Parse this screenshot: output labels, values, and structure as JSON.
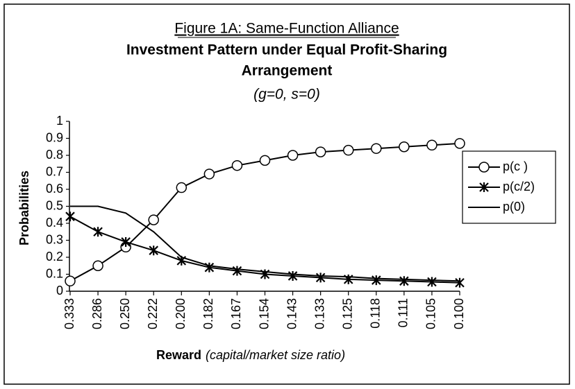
{
  "chart_data": {
    "type": "line",
    "title": "Figure 1A: Same-Function Alliance",
    "subtitle": "Investment Pattern under Equal  Profit-Sharing",
    "subtitle_line2": "Arrangement",
    "parameters": "(g=0, s=0)",
    "x_label": "Reward",
    "x_label_note": "(capital/market size ratio)",
    "y_label": "Probabilities",
    "categories": [
      "0.333",
      "0.286",
      "0.250",
      "0.222",
      "0.200",
      "0.182",
      "0.167",
      "0.154",
      "0.143",
      "0.133",
      "0.125",
      "0.118",
      "0.111",
      "0.105",
      "0.100"
    ],
    "series": [
      {
        "name": "p(c )",
        "color": "#000000",
        "marker": "circle",
        "values": [
          0.06,
          0.15,
          0.26,
          0.42,
          0.61,
          0.69,
          0.74,
          0.77,
          0.8,
          0.82,
          0.83,
          0.84,
          0.85,
          0.86,
          0.87
        ]
      },
      {
        "name": "p(c/2)",
        "color": "#000000",
        "marker": "star",
        "values": [
          0.44,
          0.35,
          0.29,
          0.24,
          0.18,
          0.14,
          0.12,
          0.1,
          0.09,
          0.08,
          0.07,
          0.065,
          0.06,
          0.055,
          0.05
        ]
      },
      {
        "name": "p(0)",
        "color": "#000000",
        "marker": "none",
        "values": [
          0.5,
          0.5,
          0.46,
          0.35,
          0.2,
          0.15,
          0.13,
          0.115,
          0.1,
          0.09,
          0.085,
          0.075,
          0.07,
          0.065,
          0.06
        ]
      }
    ],
    "ylim": [
      0,
      1
    ],
    "yticks": [
      0,
      0.1,
      0.2,
      0.3,
      0.4,
      0.5,
      0.6,
      0.7,
      0.8,
      0.9,
      1
    ],
    "grid": false,
    "legend": "right"
  }
}
